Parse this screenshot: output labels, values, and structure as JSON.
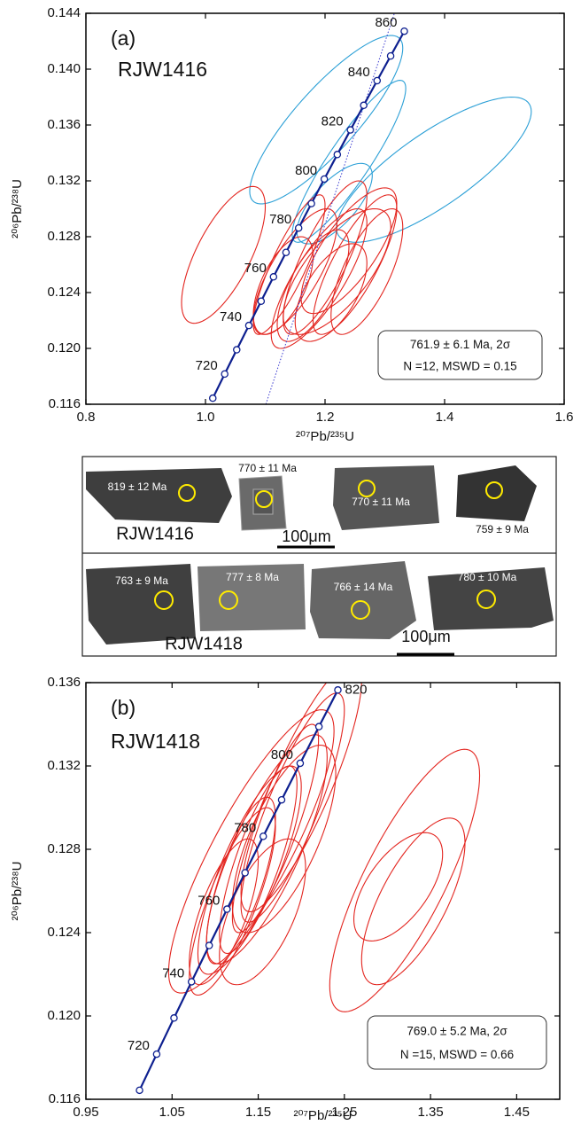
{
  "chart_data": [
    {
      "type": "concordia",
      "panel_label": "(a)",
      "sample": "RJW1416",
      "x_label": "²⁰⁷Pb/²³⁵U",
      "y_label": "²⁰⁶Pb/²³⁸U",
      "xlim": [
        0.8,
        1.6
      ],
      "xticks": [
        0.8,
        {
          "value": 1,
          "label": "1.0"
        },
        1.2,
        1.4,
        1.6
      ],
      "ylim": [
        0.116,
        0.144
      ],
      "yticks": [
        0.116,
        {
          "value": 0.12,
          "label": "0.120"
        },
        0.124,
        0.128,
        0.132,
        0.136,
        {
          "value": 0.14,
          "label": "0.140"
        },
        0.144
      ],
      "annotation": [
        "761.9 ± 6.1 Ma, 2σ",
        "N =12, MSWD = 0.15"
      ],
      "concordia": {
        "color": "#0d1f8f",
        "ages": [
          null,
          720,
          null,
          740,
          null,
          760,
          null,
          780,
          null,
          800,
          null,
          820,
          null,
          840,
          null,
          860
        ],
        "x": [
          1.01223,
          1.03215,
          1.05226,
          1.07257,
          1.09308,
          1.1138,
          1.13472,
          1.15585,
          1.17718,
          1.19873,
          1.22049,
          1.24247,
          1.26467,
          1.28708,
          1.30972,
          1.33258
        ],
        "y": [
          0.116433,
          0.118167,
          0.119902,
          0.12164,
          0.123382,
          0.125126,
          0.126873,
          0.128622,
          0.130374,
          0.132129,
          0.133886,
          0.135647,
          0.13741,
          0.139176,
          0.140944,
          0.142716
        ]
      },
      "reference_line": {
        "color": "#3a3ad0",
        "x": [
          1.101,
          1.316
        ],
        "y": [
          0.116,
          0.144
        ]
      },
      "ellipse_groups": [
        {
          "color": "#2a9fd6",
          "cx": [
            1.202,
            1.24,
            1.382,
            1.216
          ],
          "cy": [
            0.13638,
            0.1334,
            0.1328,
            0.13037
          ],
          "sx": [
            0.128,
            0.095,
            0.163,
            0.063
          ],
          "sy": [
            0.00603,
            0.0058,
            0.0052,
            0.00288
          ],
          "rho": [
            0.85,
            0.9,
            0.8,
            0.7
          ]
        },
        {
          "color": "#e3241e",
          "cx": [
            1.03,
            1.15,
            1.19,
            1.22,
            1.25,
            1.18,
            1.21,
            1.24,
            1.14,
            1.2,
            1.27,
            1.13
          ],
          "cy": [
            0.1267,
            0.1255,
            0.125,
            0.1255,
            0.126,
            0.1245,
            0.124,
            0.127,
            0.126,
            0.1265,
            0.1255,
            0.1245
          ],
          "sx": [
            0.07,
            0.07,
            0.08,
            0.09,
            0.07,
            0.06,
            0.06,
            0.08,
            0.06,
            0.07,
            0.06,
            0.05
          ],
          "sy": [
            0.0049,
            0.0045,
            0.005,
            0.0045,
            0.005,
            0.004,
            0.0035,
            0.0045,
            0.005,
            0.0055,
            0.0045,
            0.0035
          ],
          "rho": [
            0.7,
            0.75,
            0.8,
            0.7,
            0.8,
            0.7,
            0.6,
            0.75,
            0.85,
            0.8,
            0.7,
            0.6
          ]
        }
      ]
    },
    {
      "type": "concordia",
      "panel_label": "(b)",
      "sample": "RJW1418",
      "x_label": "²⁰⁷Pb/²³⁵U",
      "y_label": "²⁰⁶Pb/²³⁸U",
      "xlim": [
        0.95,
        1.5
      ],
      "xticks": [
        0.95,
        1.05,
        1.15,
        1.25,
        1.35,
        1.45
      ],
      "ylim": [
        0.116,
        0.136
      ],
      "yticks": [
        0.116,
        {
          "value": 0.12,
          "label": "0.120"
        },
        0.124,
        0.128,
        0.132,
        0.136
      ],
      "annotation": [
        "769.0 ± 5.2 Ma, 2σ",
        "N =15, MSWD = 0.66"
      ],
      "concordia": {
        "color": "#0d1f8f",
        "ages": [
          null,
          720,
          null,
          740,
          null,
          760,
          null,
          780,
          null,
          800,
          null,
          820
        ],
        "x": [
          1.01223,
          1.03215,
          1.05226,
          1.07257,
          1.09308,
          1.1138,
          1.13472,
          1.15585,
          1.17718,
          1.19873,
          1.22049,
          1.24247
        ],
        "y": [
          0.116433,
          0.118167,
          0.119902,
          0.12164,
          0.123382,
          0.125126,
          0.126873,
          0.128622,
          0.130374,
          0.132129,
          0.133886,
          0.135647
        ]
      },
      "ellipse_groups": [
        {
          "color": "#e3241e",
          "cx": [
            1.32,
            1.3125,
            1.33,
            1.142,
            1.12,
            1.14,
            1.16,
            1.13,
            1.15,
            1.17,
            1.18,
            1.11,
            1.19,
            1.155,
            1.2
          ],
          "cy": [
            0.1265,
            0.1262,
            0.1255,
            0.1279,
            0.1255,
            0.127,
            0.128,
            0.1265,
            0.1275,
            0.129,
            0.1285,
            0.125,
            0.13,
            0.125,
            0.131
          ],
          "sx": [
            0.087,
            0.0515,
            0.06,
            0.096,
            0.05,
            0.06,
            0.07,
            0.04,
            0.045,
            0.05,
            0.06,
            0.04,
            0.06,
            0.05,
            0.07
          ],
          "sy": [
            0.0063,
            0.0026,
            0.004,
            0.0068,
            0.0045,
            0.005,
            0.0055,
            0.004,
            0.0045,
            0.005,
            0.0045,
            0.0035,
            0.0055,
            0.0035,
            0.006
          ],
          "rho": [
            0.8,
            0.6,
            0.7,
            0.85,
            0.8,
            0.8,
            0.8,
            0.75,
            0.8,
            0.85,
            0.7,
            0.7,
            0.85,
            0.6,
            0.85
          ]
        }
      ]
    }
  ],
  "cl_images": {
    "rows": [
      {
        "sample": "RJW1416",
        "scale_bar": "100μm",
        "grain_ages": [
          "819 ± 12 Ma",
          "770 ± 11 Ma",
          "770 ± 11 Ma",
          "759 ± 9 Ma"
        ]
      },
      {
        "sample": "RJW1418",
        "scale_bar": "100μm",
        "grain_ages": [
          "763 ± 9 Ma",
          "777 ± 8 Ma",
          "766 ± 14 Ma",
          "780 ± 10 Ma"
        ]
      }
    ]
  }
}
